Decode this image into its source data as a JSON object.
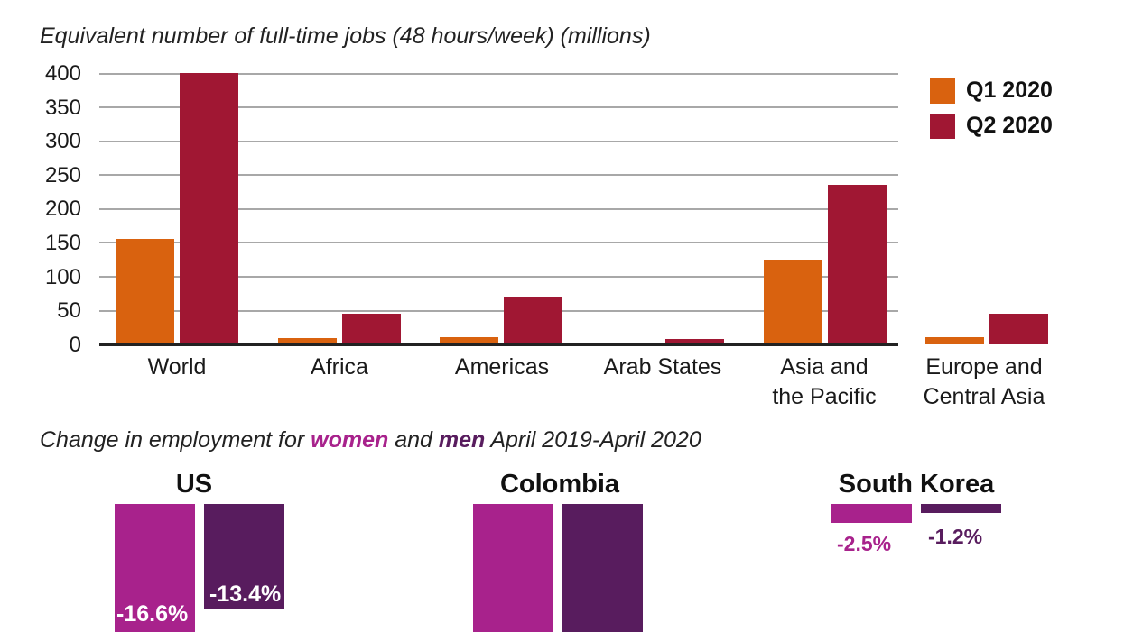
{
  "chart_data": [
    {
      "type": "bar",
      "title": "Equivalent number of full-time jobs (48 hours/week) (millions)",
      "xlabel": "",
      "ylabel": "",
      "categories": [
        "World",
        "Africa",
        "Americas",
        "Arab States",
        "Asia and the Pacific",
        "Europe and Central Asia"
      ],
      "series": [
        {
          "name": "Q1 2020",
          "color": "#d9620f",
          "values": [
            155,
            9,
            11,
            2,
            125,
            11
          ]
        },
        {
          "name": "Q2 2020",
          "color": "#a01733",
          "values": [
            400,
            45,
            70,
            8,
            235,
            45
          ]
        }
      ],
      "ylim": [
        0,
        400
      ],
      "yticks": [
        0,
        50,
        100,
        150,
        200,
        250,
        300,
        350,
        400
      ],
      "grid": true,
      "legend_position": "top-right"
    },
    {
      "type": "bar",
      "title": "Change in employment for women and men April 2019-April 2020",
      "categories": [
        "US",
        "Colombia",
        "South Korea"
      ],
      "series": [
        {
          "name": "women",
          "color": "#a8228c",
          "values": [
            -16.6,
            null,
            -2.5
          ]
        },
        {
          "name": "men",
          "color": "#581c5e",
          "values": [
            -13.4,
            null,
            -1.2
          ]
        }
      ],
      "notes": "Colombia bars extend beyond visible area; values not shown"
    }
  ],
  "chart1": {
    "title": "Equivalent number of full-time jobs (48 hours/week) (millions)",
    "yticks": [
      "400",
      "350",
      "300",
      "250",
      "200",
      "150",
      "100",
      "50",
      "0"
    ],
    "categories": [
      {
        "line1": "World",
        "line2": ""
      },
      {
        "line1": "Africa",
        "line2": ""
      },
      {
        "line1": "Americas",
        "line2": ""
      },
      {
        "line1": "Arab States",
        "line2": ""
      },
      {
        "line1": "Asia and",
        "line2": "the Pacific"
      },
      {
        "line1": "Europe and",
        "line2": "Central Asia"
      }
    ],
    "legend": [
      {
        "label": "Q1 2020",
        "color": "#d9620f"
      },
      {
        "label": "Q2 2020",
        "color": "#a01733"
      }
    ]
  },
  "chart2": {
    "title_pre": "Change in employment for ",
    "title_women": "women",
    "title_mid": " and ",
    "title_men": "men",
    "title_post": " April 2019-April 2020",
    "countries": [
      {
        "name": "US",
        "women_label": "-16.6%",
        "men_label": "-13.4%"
      },
      {
        "name": "Colombia"
      },
      {
        "name": "South Korea",
        "women_label": "-2.5%",
        "men_label": "-1.2%"
      }
    ],
    "colors": {
      "women": "#a8228c",
      "men": "#581c5e"
    }
  }
}
